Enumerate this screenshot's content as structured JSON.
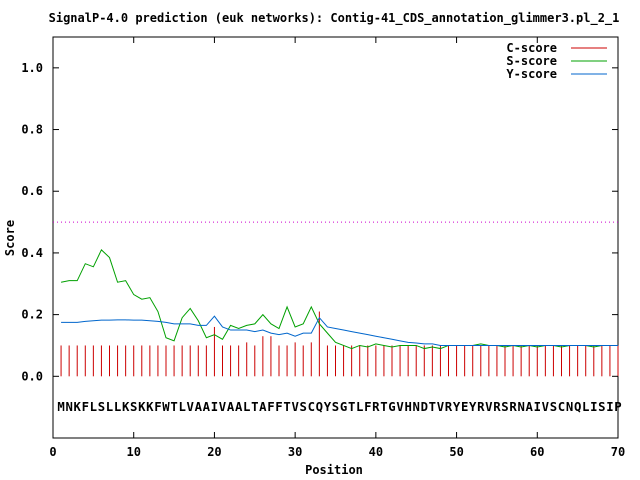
{
  "chart_data": {
    "type": "line",
    "title": "SignalP-4.0 prediction (euk networks): Contig-41_CDS_annotation_glimmer3.pl_2_1",
    "xlabel": "Position",
    "ylabel": "Score",
    "xlim": [
      0,
      70
    ],
    "ylim": [
      -0.2,
      1.1
    ],
    "xticks": [
      0,
      10,
      20,
      30,
      40,
      50,
      60,
      70
    ],
    "yticks": [
      0.0,
      0.2,
      0.4,
      0.6,
      0.8,
      1.0
    ],
    "xtick_labels": [
      "0",
      "10",
      "20",
      "30",
      "40",
      "50",
      "60",
      "70"
    ],
    "ytick_labels": [
      "0.0",
      "0.2",
      "0.4",
      "0.6",
      "0.8",
      "1.0"
    ],
    "threshold": 0.5,
    "legend_position": "top-right",
    "sequence": "MNKFLSLLKSKKFWTLVAAIVAALTAFFTVSCQYSGTLFRTGVHNDTVRYEYRVRSRNAIVSCNQLISIP",
    "series": [
      {
        "name": "C-score",
        "color": "#cc0000",
        "values": [
          0.1,
          0.1,
          0.1,
          0.1,
          0.1,
          0.1,
          0.1,
          0.1,
          0.1,
          0.1,
          0.1,
          0.1,
          0.1,
          0.1,
          0.1,
          0.1,
          0.1,
          0.1,
          0.1,
          0.16,
          0.1,
          0.1,
          0.1,
          0.11,
          0.1,
          0.13,
          0.13,
          0.1,
          0.1,
          0.11,
          0.1,
          0.11,
          0.21,
          0.1,
          0.1,
          0.1,
          0.1,
          0.1,
          0.1,
          0.1,
          0.1,
          0.1,
          0.1,
          0.1,
          0.1,
          0.1,
          0.1,
          0.1,
          0.1,
          0.1,
          0.1,
          0.1,
          0.1,
          0.1,
          0.1,
          0.1,
          0.1,
          0.1,
          0.1,
          0.1,
          0.1,
          0.1,
          0.1,
          0.1,
          0.1,
          0.1,
          0.1,
          0.1,
          0.1,
          0.1
        ]
      },
      {
        "name": "S-score",
        "color": "#00a000",
        "values": [
          0.305,
          0.31,
          0.31,
          0.365,
          0.355,
          0.41,
          0.385,
          0.305,
          0.31,
          0.265,
          0.25,
          0.255,
          0.21,
          0.125,
          0.115,
          0.19,
          0.22,
          0.18,
          0.125,
          0.135,
          0.12,
          0.165,
          0.155,
          0.165,
          0.17,
          0.2,
          0.17,
          0.155,
          0.225,
          0.16,
          0.17,
          0.225,
          0.17,
          0.14,
          0.11,
          0.1,
          0.09,
          0.1,
          0.095,
          0.105,
          0.1,
          0.095,
          0.1,
          0.1,
          0.1,
          0.09,
          0.095,
          0.09,
          0.1,
          0.1,
          0.1,
          0.1,
          0.105,
          0.1,
          0.1,
          0.095,
          0.1,
          0.095,
          0.1,
          0.095,
          0.1,
          0.1,
          0.095,
          0.1,
          0.1,
          0.1,
          0.095,
          0.1,
          0.1,
          0.1
        ]
      },
      {
        "name": "Y-score",
        "color": "#0066cc",
        "values": [
          0.175,
          0.175,
          0.175,
          0.178,
          0.18,
          0.182,
          0.182,
          0.183,
          0.183,
          0.182,
          0.182,
          0.18,
          0.178,
          0.175,
          0.17,
          0.17,
          0.17,
          0.165,
          0.165,
          0.195,
          0.16,
          0.15,
          0.15,
          0.15,
          0.145,
          0.15,
          0.14,
          0.135,
          0.14,
          0.13,
          0.14,
          0.14,
          0.19,
          0.16,
          0.155,
          0.15,
          0.145,
          0.14,
          0.135,
          0.13,
          0.125,
          0.12,
          0.115,
          0.11,
          0.108,
          0.105,
          0.105,
          0.1,
          0.1,
          0.1,
          0.1,
          0.1,
          0.1,
          0.1,
          0.1,
          0.1,
          0.1,
          0.1,
          0.1,
          0.1,
          0.1,
          0.1,
          0.1,
          0.1,
          0.1,
          0.1,
          0.1,
          0.1,
          0.1,
          0.1
        ]
      }
    ]
  }
}
